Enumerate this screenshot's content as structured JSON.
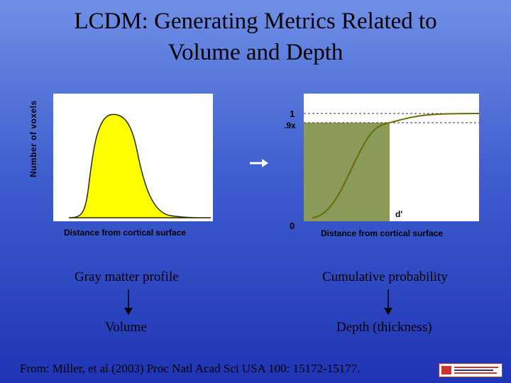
{
  "slide": {
    "title_line1": "LCDM: Generating Metrics Related to",
    "title_line2": "Volume and Depth",
    "left_chart": {
      "ylabel": "Number of voxels",
      "xlabel": "Distance from cortical surface"
    },
    "right_chart": {
      "tick_1": "1",
      "tick_9x": ".9x",
      "tick_0": "0",
      "marker_d": "d'",
      "xlabel": "Distance from cortical surface"
    },
    "caption_left": "Gray matter profile",
    "caption_left_result": "Volume",
    "caption_right": "Cumulative probability",
    "caption_right_result": "Depth (thickness)",
    "citation": "From: Miller, et al (2003) Proc Natl Acad Sci USA 100: 15172-15177.",
    "colors": {
      "bell_fill": "#ffff00",
      "shade_fill": "#8a9a5b",
      "curve": "#6b6b00"
    }
  }
}
